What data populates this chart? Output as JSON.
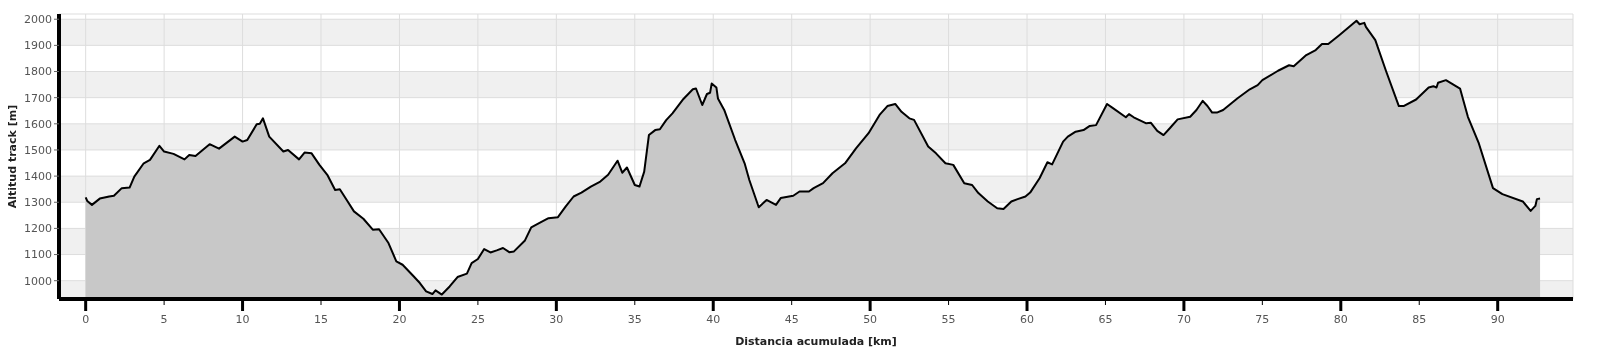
{
  "chart_data": {
    "type": "area",
    "xlabel": "Distancia acumulada [km]",
    "ylabel": "Altitud track [m]",
    "color": "#c8c8c8",
    "grid": true,
    "xlim": [
      -1.7,
      94.8
    ],
    "ylim": [
      930,
      2020
    ],
    "xticks": [
      0,
      5,
      10,
      15,
      20,
      25,
      30,
      35,
      40,
      45,
      50,
      55,
      60,
      65,
      70,
      75,
      80,
      85,
      90
    ],
    "yticks": [
      1000,
      1100,
      1200,
      1300,
      1400,
      1500,
      1600,
      1700,
      1800,
      1900,
      2000
    ],
    "x": [
      0,
      0.1,
      0.4,
      0.9,
      1.5,
      1.8,
      2.3,
      2.8,
      3.1,
      3.7,
      4.1,
      4.7,
      5.0,
      5.6,
      6.3,
      6.6,
      7.0,
      7.9,
      8.5,
      9.5,
      10.0,
      10.3,
      10.9,
      11.1,
      11.3,
      11.7,
      12.6,
      12.9,
      13.6,
      13.95,
      14.4,
      14.9,
      15.4,
      15.9,
      16.2,
      16.7,
      17.1,
      17.7,
      18.3,
      18.7,
      19.3,
      19.8,
      20.2,
      20.9,
      21.3,
      21.7,
      22.1,
      22.3,
      22.7,
      23.2,
      23.7,
      24.3,
      24.6,
      25.0,
      25.4,
      25.8,
      26.2,
      26.6,
      27.0,
      27.3,
      28.0,
      28.4,
      28.9,
      29.5,
      30.1,
      30.6,
      31.1,
      31.6,
      32.2,
      32.8,
      33.3,
      33.9,
      34.2,
      34.5,
      35.0,
      35.3,
      35.6,
      35.9,
      36.3,
      36.6,
      37.0,
      37.4,
      38.1,
      38.7,
      38.9,
      39.3,
      39.6,
      39.8,
      39.9,
      40.2,
      40.3,
      40.7,
      41.4,
      42.0,
      42.3,
      42.9,
      43.4,
      44.0,
      44.3,
      45.1,
      45.5,
      46.1,
      46.4,
      47.0,
      47.6,
      48.4,
      49.1,
      49.9,
      50.6,
      51.1,
      51.6,
      52.0,
      52.5,
      52.8,
      53.7,
      54.2,
      54.8,
      55.3,
      56.0,
      56.5,
      56.9,
      57.5,
      58.1,
      58.5,
      59.0,
      59.4,
      59.9,
      60.2,
      60.8,
      61.3,
      61.6,
      62.3,
      62.6,
      63.1,
      63.6,
      64.0,
      64.4,
      65.1,
      65.5,
      66.3,
      66.5,
      66.8,
      67.6,
      67.9,
      68.3,
      68.7,
      69.1,
      69.6,
      70.4,
      70.8,
      71.2,
      71.5,
      71.8,
      72.1,
      72.5,
      73.4,
      74.2,
      74.7,
      75.0,
      76.0,
      76.7,
      77.0,
      77.8,
      78.4,
      78.8,
      79.2,
      79.9,
      81.0,
      81.2,
      81.5,
      81.6,
      82.2,
      82.9,
      83.7,
      84.0,
      84.8,
      85.6,
      85.9,
      86.1,
      86.2,
      86.7,
      87.6,
      88.1,
      88.8,
      89.7,
      90.3,
      91.6,
      92.1,
      92.4,
      92.5,
      92.7
    ],
    "values": [
      1319,
      1305,
      1290,
      1314,
      1322,
      1325,
      1354,
      1356,
      1398,
      1449,
      1462,
      1516,
      1494,
      1485,
      1464,
      1481,
      1477,
      1522,
      1505,
      1551,
      1532,
      1538,
      1598,
      1600,
      1621,
      1551,
      1494,
      1500,
      1464,
      1490,
      1487,
      1443,
      1405,
      1347,
      1350,
      1303,
      1265,
      1237,
      1195,
      1197,
      1144,
      1074,
      1061,
      1017,
      991,
      959,
      949,
      963,
      947,
      978,
      1014,
      1027,
      1067,
      1083,
      1121,
      1108,
      1116,
      1125,
      1109,
      1112,
      1154,
      1204,
      1220,
      1239,
      1243,
      1284,
      1322,
      1337,
      1360,
      1379,
      1405,
      1459,
      1413,
      1433,
      1366,
      1360,
      1417,
      1557,
      1576,
      1579,
      1614,
      1640,
      1695,
      1732,
      1735,
      1672,
      1714,
      1719,
      1754,
      1739,
      1697,
      1653,
      1538,
      1449,
      1385,
      1281,
      1309,
      1290,
      1316,
      1325,
      1341,
      1341,
      1354,
      1373,
      1411,
      1449,
      1506,
      1564,
      1634,
      1668,
      1676,
      1646,
      1621,
      1615,
      1513,
      1487,
      1449,
      1443,
      1373,
      1366,
      1335,
      1303,
      1277,
      1274,
      1303,
      1312,
      1322,
      1337,
      1392,
      1453,
      1445,
      1532,
      1551,
      1570,
      1576,
      1592,
      1595,
      1676,
      1659,
      1625,
      1637,
      1625,
      1602,
      1604,
      1573,
      1557,
      1583,
      1617,
      1627,
      1653,
      1688,
      1668,
      1643,
      1643,
      1653,
      1697,
      1732,
      1748,
      1767,
      1803,
      1824,
      1820,
      1863,
      1882,
      1905,
      1905,
      1939,
      1994,
      1981,
      1986,
      1971,
      1920,
      1799,
      1668,
      1668,
      1693,
      1739,
      1744,
      1739,
      1757,
      1767,
      1735,
      1627,
      1525,
      1354,
      1331,
      1303,
      1267,
      1286,
      1312,
      1314
    ]
  }
}
